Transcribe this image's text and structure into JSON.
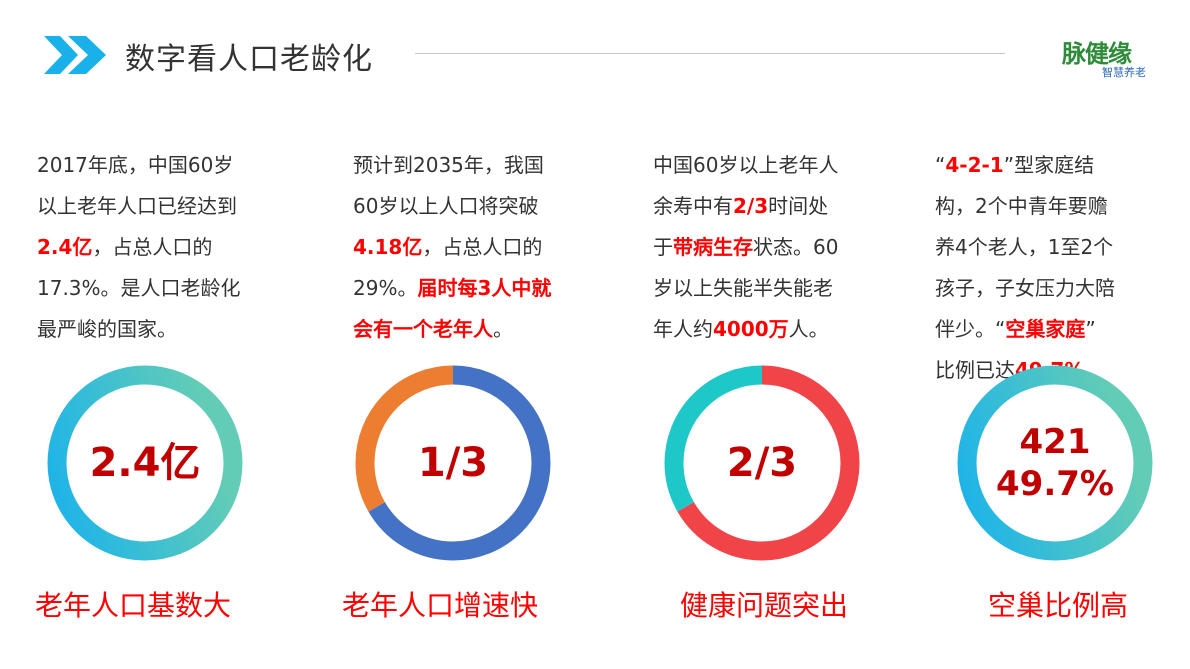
{
  "header": {
    "title": "数字看人口老龄化",
    "accent": "#1ab0ea"
  },
  "logo": {
    "main": "脉健缘",
    "sub": "智慧养老"
  },
  "columns": [
    {
      "lines": [
        [
          {
            "t": "2017年底，中国60岁",
            "red": false
          }
        ],
        [
          {
            "t": "以上老年人口已经达到",
            "red": false
          }
        ],
        [
          {
            "t": "2.4亿",
            "red": true
          },
          {
            "t": "，占总人口的",
            "red": false
          }
        ],
        [
          {
            "t": "17.3%。是人口老龄化",
            "red": false
          }
        ],
        [
          {
            "t": "最严峻的国家。",
            "red": false
          }
        ]
      ],
      "donut": {
        "value": "2.4亿",
        "segments": [
          {
            "fraction": 1,
            "color": "gradient"
          }
        ]
      },
      "caption": "老年人口基数大"
    },
    {
      "lines": [
        [
          {
            "t": "预计到2035年，我国",
            "red": false
          }
        ],
        [
          {
            "t": "60岁以上人口将突破",
            "red": false
          }
        ],
        [
          {
            "t": "4.18亿",
            "red": true
          },
          {
            "t": "，占总人口的",
            "red": false
          }
        ],
        [
          {
            "t": "29%。",
            "red": false
          },
          {
            "t": "届时每3人中就",
            "red": true
          }
        ],
        [
          {
            "t": "会有一个老年人",
            "red": true
          },
          {
            "t": "。",
            "red": false
          }
        ]
      ],
      "donut": {
        "value": "1/3",
        "segments": [
          {
            "fraction": 0.6667,
            "color": "#4472c4"
          },
          {
            "fraction": 0.3333,
            "color": "#ed7d31"
          }
        ]
      },
      "caption": "老年人口增速快"
    },
    {
      "lines": [
        [
          {
            "t": "中国60岁以上老年人",
            "red": false
          }
        ],
        [
          {
            "t": "余寿中有",
            "red": false
          },
          {
            "t": "2/3",
            "red": true
          },
          {
            "t": "时间处",
            "red": false
          }
        ],
        [
          {
            "t": "于",
            "red": false
          },
          {
            "t": "带病生存",
            "red": true
          },
          {
            "t": "状态。60",
            "red": false
          }
        ],
        [
          {
            "t": "岁以上失能半失能老",
            "red": false
          }
        ],
        [
          {
            "t": "年人约",
            "red": false
          },
          {
            "t": "4000万",
            "red": true
          },
          {
            "t": "人。",
            "red": false
          }
        ]
      ],
      "donut": {
        "value": "2/3",
        "segments": [
          {
            "fraction": 0.6667,
            "color": "#f04448"
          },
          {
            "fraction": 0.3333,
            "color": "#1fc8c8"
          }
        ]
      },
      "caption": "健康问题突出"
    },
    {
      "lines": [
        [
          {
            "t": " “",
            "red": false
          },
          {
            "t": "4-2-1",
            "red": true
          },
          {
            "t": "”型家庭结",
            "red": false
          }
        ],
        [
          {
            "t": "构，2个中青年要赡",
            "red": false
          }
        ],
        [
          {
            "t": "养4个老人，1至2个",
            "red": false
          }
        ],
        [
          {
            "t": "孩子，子女压力大陪",
            "red": false
          }
        ],
        [
          {
            "t": "伴少。“",
            "red": false
          },
          {
            "t": "空巢家庭",
            "red": true
          },
          {
            "t": "”",
            "red": false
          }
        ],
        [
          {
            "t": "比例已达",
            "red": false
          },
          {
            "t": "49.7%",
            "red": true
          },
          {
            "t": "。",
            "red": false
          }
        ]
      ],
      "donut": {
        "value": "421",
        "value2": "49.7%",
        "segments": [
          {
            "fraction": 1,
            "color": "gradient"
          }
        ]
      },
      "caption": "空巢比例高"
    }
  ],
  "colors": {
    "gradient_top": "#19b2ec",
    "gradient_bottom": "#63ccb6",
    "value": "#c00000",
    "caption": "#ff0000"
  }
}
